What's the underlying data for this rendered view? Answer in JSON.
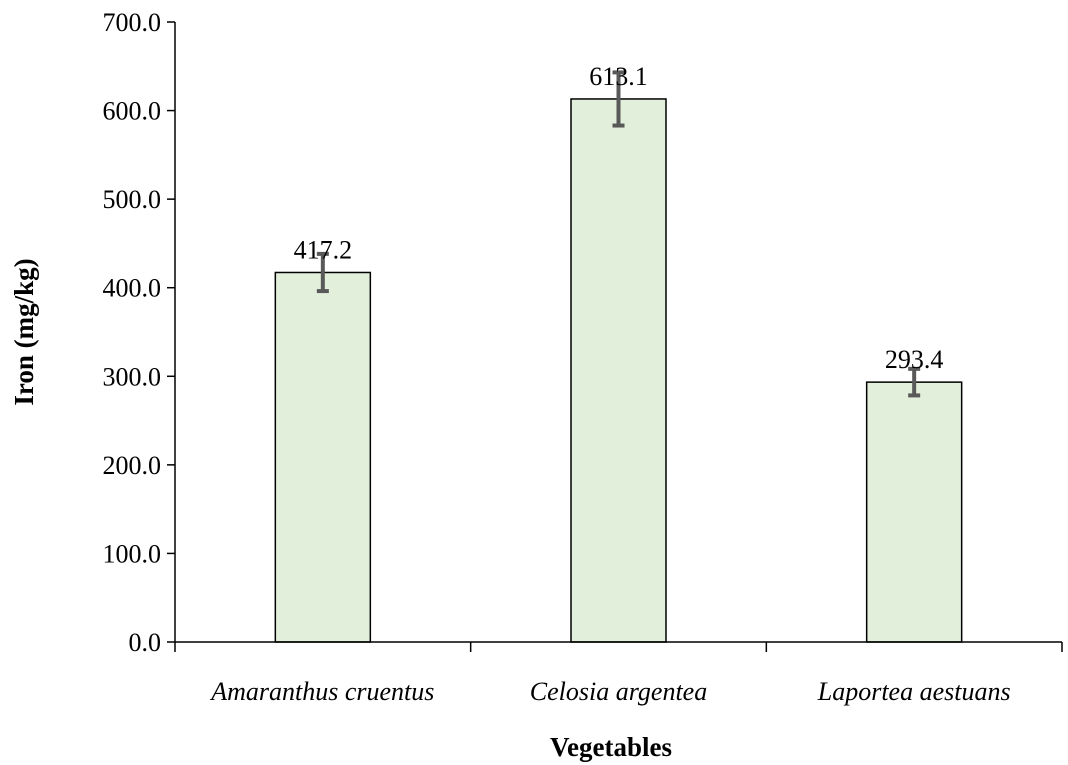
{
  "chart_data": {
    "type": "bar",
    "categories": [
      "Amaranthus cruentus",
      "Celosia argentea",
      "Laportea aestuans"
    ],
    "values": [
      417.2,
      613.1,
      293.4
    ],
    "errors": [
      21.0,
      30.0,
      15.0
    ],
    "data_labels": [
      "417.2",
      "613.1",
      "293.4"
    ],
    "xlabel": "Vegetables",
    "ylabel": "Iron (mg/kg)",
    "ylim": [
      0,
      700
    ],
    "yticks": [
      "0.0",
      "100.0",
      "200.0",
      "300.0",
      "400.0",
      "500.0",
      "600.0",
      "700.0"
    ],
    "grid": false,
    "colors": {
      "bar_fill": "#e2efda",
      "bar_stroke": "#000000",
      "error_bar": "#595959",
      "axis": "#000000"
    }
  }
}
